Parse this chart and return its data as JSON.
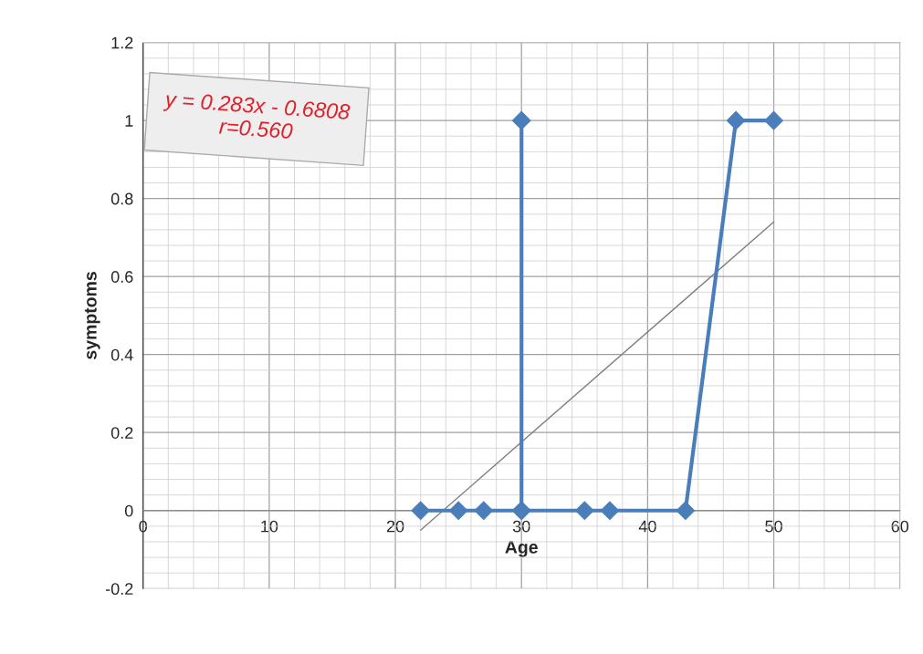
{
  "chart_data": {
    "type": "line",
    "xlabel": "Age",
    "ylabel": "symptoms",
    "xlim": [
      0,
      60
    ],
    "xticks": [
      0,
      10,
      20,
      30,
      40,
      50,
      60
    ],
    "ylim": [
      -0.2,
      1.2
    ],
    "yticks": [
      -0.2,
      0,
      0.2,
      0.4,
      0.6,
      0.8,
      1,
      1.2
    ],
    "series": [
      {
        "color": "#4a7ebb",
        "marker": "diamond",
        "x": [
          22,
          25,
          27,
          30,
          30,
          30,
          35,
          37,
          43,
          47,
          50
        ],
        "values": [
          0,
          0,
          0,
          0,
          1,
          0,
          0,
          0,
          0,
          1,
          1
        ]
      },
      {
        "color": "#808080",
        "marker": "none",
        "x": [
          22,
          50
        ],
        "values": [
          -0.05,
          0.74
        ]
      }
    ],
    "annotations": [
      "y = 0.283x - 0.6808",
      "r=0.560"
    ],
    "grid": true,
    "legend": false
  }
}
